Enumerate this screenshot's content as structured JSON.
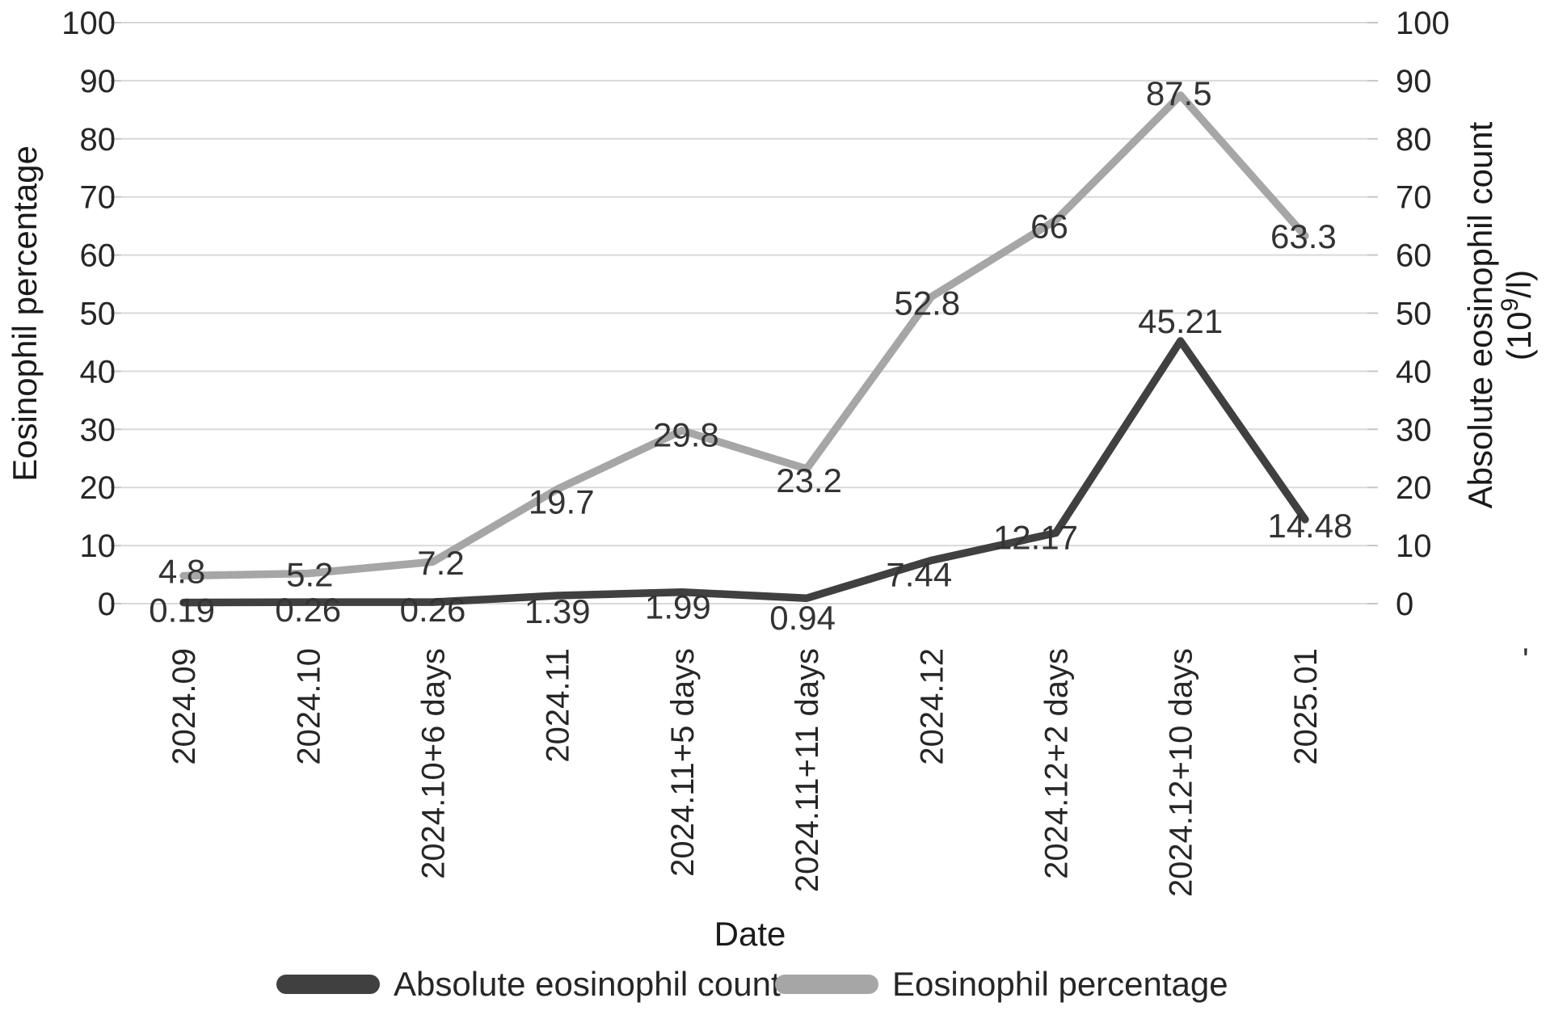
{
  "figure": {
    "background": "#ffffff",
    "stray_mark": "'"
  },
  "chart_data": {
    "type": "line",
    "title": "",
    "xlabel": "Date",
    "ylabel_left": "Eosinophil percentage",
    "ylabel_right_line1": "Absolute eosinophil count",
    "ylabel_right_line2_pre": "(10",
    "ylabel_right_line2_sup": "9",
    "ylabel_right_line2_post": "/l)",
    "ylabel_right_display": "Absolute eosinophil count (10⁹/l)",
    "ylim": [
      0,
      100
    ],
    "yticks": [
      0,
      10,
      20,
      30,
      40,
      50,
      60,
      70,
      80,
      90,
      100
    ],
    "grid": true,
    "legend_position": "bottom",
    "categories": [
      "2024.09",
      "2024.10",
      "2024.10+6 days",
      "2024.11",
      "2024.11+5 days",
      "2024.11+11 days",
      "2024.12",
      "2024.12+2 days",
      "2024.12+10 days",
      "2025.01"
    ],
    "series": [
      {
        "name": "Eosinophil percentage",
        "color": "#a6a6a6",
        "values": [
          4.8,
          5.2,
          7.2,
          19.7,
          29.8,
          23.2,
          52.8,
          66,
          87.5,
          63.3
        ],
        "labels": [
          "4.8",
          "5.2",
          "7.2",
          "19.7",
          "29.8",
          "23.2",
          "52.8",
          "66",
          "87.5",
          "63.3"
        ],
        "label_offsets": [
          [
            -2,
            -5
          ],
          [
            2,
            2
          ],
          [
            10,
            2
          ],
          [
            5,
            16
          ],
          [
            5,
            6
          ],
          [
            3,
            15
          ],
          [
            -5,
            8
          ],
          [
            -8,
            8
          ],
          [
            -2,
            -2
          ],
          [
            -2,
            1
          ]
        ]
      },
      {
        "name": "Absolute eosinophil count",
        "color": "#404040",
        "values": [
          0.19,
          0.26,
          0.26,
          1.39,
          1.99,
          0.94,
          7.44,
          12.17,
          45.21,
          14.48
        ],
        "labels": [
          "0.19",
          "0.26",
          "0.26",
          "1.39",
          "1.99",
          "0.94",
          "7.44",
          "12.17",
          "45.21",
          "14.48"
        ],
        "label_offsets": [
          [
            -2,
            10
          ],
          [
            0,
            10
          ],
          [
            0,
            10
          ],
          [
            0,
            20
          ],
          [
            -5,
            19
          ],
          [
            -5,
            25
          ],
          [
            -15,
            18
          ],
          [
            -25,
            6
          ],
          [
            0,
            -24
          ],
          [
            6,
            8
          ]
        ]
      }
    ],
    "legend": [
      {
        "label": "Absolute eosinophil count",
        "color": "#404040"
      },
      {
        "label": "Eosinophil percentage",
        "color": "#a6a6a6"
      }
    ],
    "colors": {
      "gridline": "#d9d9d9",
      "tick_mark": "#c6c6c6",
      "tick_text": "#262626",
      "data_label_text": "#333333",
      "axis_title_text": "#1a1a1a"
    }
  }
}
